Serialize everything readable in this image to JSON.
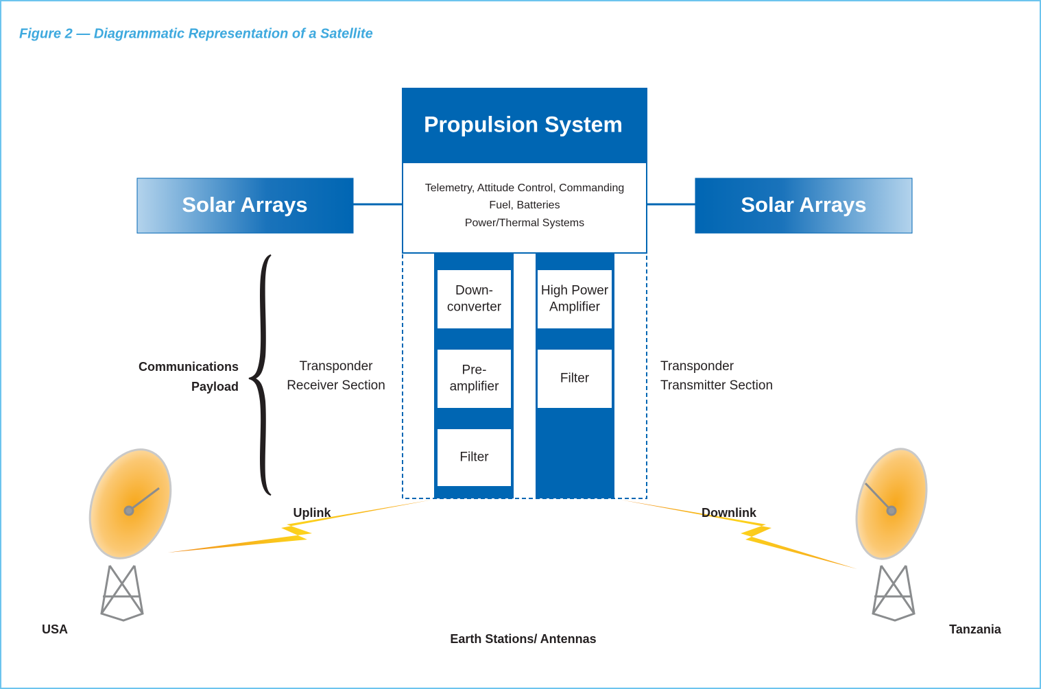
{
  "title": "Figure 2 — Diagrammatic Representation of a Satellite",
  "propulsion": "Propulsion System",
  "bus_lines": [
    "Telemetry, Attitude Control, Commanding",
    "Fuel, Batteries",
    "Power/Thermal Systems"
  ],
  "solar_left": "Solar Arrays",
  "solar_right": "Solar Arrays",
  "payload_label": [
    "Communications",
    "Payload"
  ],
  "receiver_label": [
    "Transponder",
    "Receiver Section"
  ],
  "transmitter_label": [
    "Transponder",
    "Transmitter Section"
  ],
  "receiver_blocks": [
    [
      "Down-",
      "converter"
    ],
    [
      "Pre-",
      "amplifier"
    ],
    [
      "Filter"
    ]
  ],
  "transmitter_blocks": [
    [
      "High Power",
      "Amplifier"
    ],
    [
      "Filter"
    ]
  ],
  "uplink": "Uplink",
  "downlink": "Downlink",
  "left_station": "USA",
  "right_station": "Tanzania",
  "stations_label": "Earth Stations/ Antennas"
}
